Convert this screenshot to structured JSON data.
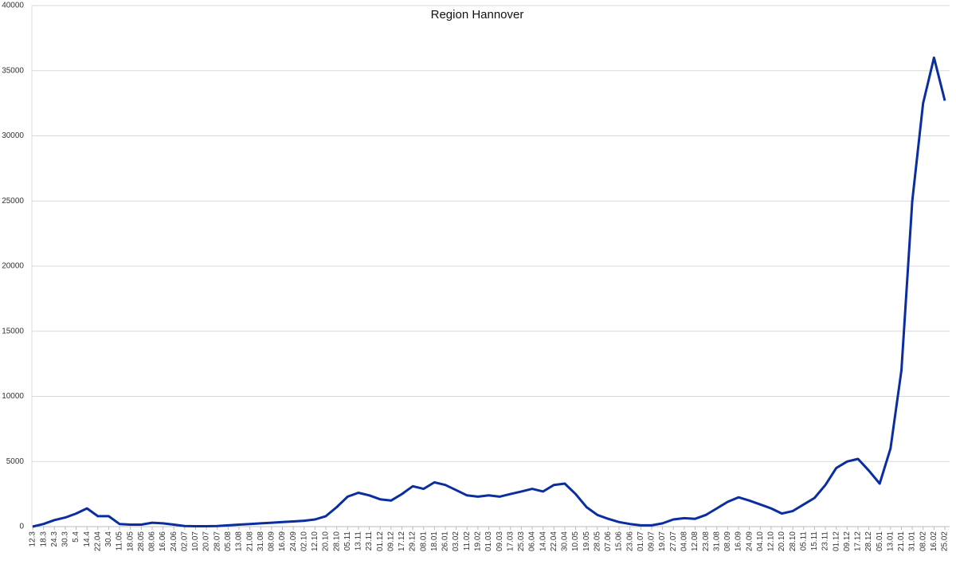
{
  "chart_data": {
    "type": "line",
    "title": "Region Hannover",
    "categories": [
      "12.3",
      "18.3",
      "24.3",
      "30.3",
      "5.4",
      "14.4",
      "22.04",
      "30.4",
      "11.05",
      "18.05",
      "28.05",
      "08.06",
      "16.06",
      "24.06",
      "02.07",
      "10.07",
      "20.07",
      "28.07",
      "05.08",
      "13.08",
      "21.08",
      "31.08",
      "08.09",
      "16.09",
      "24.09",
      "02.10",
      "12.10",
      "20.10",
      "28.10",
      "05.11",
      "13.11",
      "23.11",
      "01.12",
      "09.12",
      "17.12",
      "29.12",
      "08.01",
      "18.01",
      "26.01",
      "03.02",
      "11.02",
      "19.02",
      "01.03",
      "09.03",
      "17.03",
      "25.03",
      "06.04",
      "14.04",
      "22.04",
      "30.04",
      "10.05",
      "19.05",
      "28.05",
      "07.06",
      "15.06",
      "23.06",
      "01.07",
      "09.07",
      "19.07",
      "27.07",
      "04.08",
      "12.08",
      "23.08",
      "31.08",
      "08.09",
      "16.09",
      "24.09",
      "04.10",
      "12.10",
      "20.10",
      "28.10",
      "05.11",
      "15.11",
      "23.11",
      "01.12",
      "09.12",
      "17.12",
      "28.12",
      "05.01",
      "13.01",
      "21.01",
      "31.01",
      "08.02",
      "16.02",
      "25.02"
    ],
    "values": [
      0,
      200,
      500,
      700,
      1000,
      1400,
      800,
      800,
      200,
      150,
      150,
      300,
      250,
      150,
      50,
      30,
      30,
      50,
      100,
      150,
      200,
      250,
      300,
      350,
      400,
      450,
      550,
      800,
      1500,
      2300,
      2600,
      2400,
      2100,
      2000,
      2500,
      3100,
      2900,
      3400,
      3200,
      2800,
      2400,
      2300,
      2400,
      2300,
      2500,
      2700,
      2900,
      2700,
      3200,
      3300,
      2500,
      1500,
      900,
      600,
      350,
      200,
      100,
      100,
      250,
      550,
      650,
      600,
      900,
      1400,
      1900,
      2250,
      2000,
      1700,
      1400,
      1000,
      1200,
      1700,
      2200,
      3200,
      4500,
      5000,
      5200,
      4300,
      3300,
      6000,
      12000,
      25000,
      32500,
      36000,
      32700
    ],
    "color": "#0a2ea0",
    "ylim": [
      0,
      40000
    ],
    "yticks": [
      0,
      5000,
      10000,
      15000,
      20000,
      25000,
      30000,
      35000,
      40000
    ],
    "grid": true
  }
}
